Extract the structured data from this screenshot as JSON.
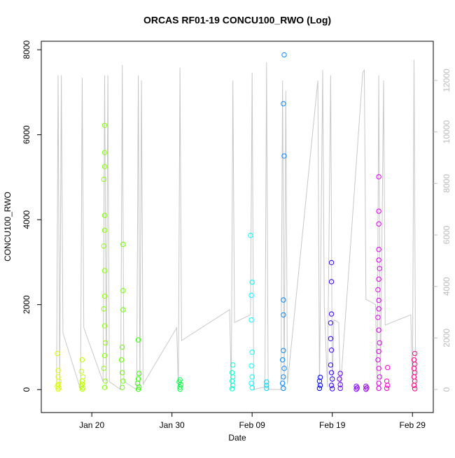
{
  "chart_data": {
    "type": "scatter",
    "title": "ORCAS RF01-19 CONCU100_RWO (Log)",
    "x_label": "Date",
    "y_label": "CONCU100_RWO",
    "xlim": [
      13.7,
      62.6
    ],
    "xticks": [
      {
        "value": 20,
        "label": "Jan 20"
      },
      {
        "value": 30,
        "label": "Jan 30"
      },
      {
        "value": 40,
        "label": "Feb 09"
      },
      {
        "value": 50,
        "label": "Feb 19"
      },
      {
        "value": 60,
        "label": "Feb 29"
      }
    ],
    "ylim": [
      -540,
      8200
    ],
    "yticks": [
      0,
      2000,
      4000,
      6000,
      8000
    ],
    "y2lim": [
      -896,
      13520
    ],
    "y2ticks": [
      0,
      2000,
      4000,
      6000,
      8000,
      10000,
      12000
    ],
    "y2color": "#bbbbbb",
    "line": {
      "axis": "y2",
      "color": "#c8c8c8",
      "x": [
        15.6,
        15.8,
        16.0,
        16.2,
        16.4,
        18.6,
        18.8,
        19.0,
        21.4,
        21.6,
        21.8,
        22.0,
        22.2,
        23.6,
        23.8,
        24.0,
        25.6,
        25.8,
        26.0,
        26.2,
        26.4,
        30.6,
        30.8,
        31.0,
        31.2,
        37.2,
        37.4,
        37.6,
        37.8,
        39.8,
        40.0,
        40.2,
        41.6,
        41.8,
        42.0,
        43.6,
        43.8,
        44.0,
        44.2,
        44.4,
        48.2,
        48.4,
        48.8,
        49.0,
        49.4,
        49.8,
        50.0,
        50.2,
        50.8,
        51.0,
        53.8,
        54.0,
        54.2,
        55.4,
        55.6,
        55.8,
        56.0,
        56.4,
        56.6,
        59.8,
        60.0,
        60.2,
        60.4
      ],
      "values": [
        0,
        12200,
        0,
        12200,
        2200,
        0,
        12100,
        2400,
        300,
        12200,
        0,
        12200,
        300,
        0,
        12600,
        300,
        0,
        12200,
        0,
        12000,
        200,
        2400,
        0,
        12500,
        1900,
        3100,
        0,
        12000,
        2600,
        2900,
        12300,
        0,
        100,
        12700,
        0,
        0,
        12000,
        0,
        11600,
        200,
        12000,
        0,
        12400,
        3200,
        100,
        12200,
        0,
        2700,
        2600,
        0,
        12300,
        12400,
        3500,
        3300,
        0,
        12200,
        0,
        12000,
        2500,
        2900,
        0,
        12800,
        0
      ]
    },
    "series": [
      {
        "color": "#ddff00",
        "x": [
          15.7,
          15.8,
          15.8,
          15.9,
          15.8,
          15.7,
          15.9,
          15.8
        ],
        "values": [
          850,
          450,
          300,
          200,
          120,
          80,
          40,
          10
        ]
      },
      {
        "color": "#bbff00",
        "x": [
          18.8,
          18.7,
          18.9,
          18.8,
          18.8,
          18.7,
          18.9,
          18.8
        ],
        "values": [
          700,
          430,
          300,
          200,
          130,
          80,
          40,
          10
        ]
      },
      {
        "color": "#88ff00",
        "x": [
          21.6,
          21.6,
          21.6,
          21.5,
          21.6,
          21.6,
          21.5,
          21.6,
          21.6,
          21.5,
          21.6,
          21.7,
          21.6,
          21.5,
          21.7,
          21.6
        ],
        "values": [
          6220,
          5580,
          5250,
          4950,
          4100,
          3750,
          3380,
          2800,
          2200,
          1900,
          1500,
          1100,
          800,
          500,
          200,
          50
        ]
      },
      {
        "color": "#66ff00",
        "x": [
          23.9,
          23.9,
          23.9,
          23.8,
          23.7,
          23.8,
          23.9,
          23.8
        ],
        "values": [
          3420,
          2330,
          1880,
          1000,
          700,
          400,
          200,
          50
        ]
      },
      {
        "color": "#33ff00",
        "x": [
          25.8,
          25.9,
          25.8,
          25.7,
          25.9,
          25.8
        ],
        "values": [
          1170,
          380,
          250,
          150,
          60,
          10
        ]
      },
      {
        "color": "#00ff44",
        "x": [
          31.0,
          30.9,
          31.1,
          31.0,
          31.0
        ],
        "values": [
          230,
          180,
          120,
          60,
          10
        ]
      },
      {
        "color": "#00ffcc",
        "x": [
          37.6,
          37.5,
          37.6,
          37.5,
          37.6,
          37.5
        ],
        "values": [
          580,
          400,
          300,
          200,
          100,
          20
        ]
      },
      {
        "color": "#00ffff",
        "x": [
          39.8,
          40.0,
          39.9,
          39.9,
          40.0,
          39.9,
          40.0,
          39.9,
          40.0
        ],
        "values": [
          3630,
          2530,
          2220,
          1640,
          880,
          560,
          300,
          150,
          40
        ]
      },
      {
        "color": "#00ddff",
        "x": [
          41.8,
          41.8,
          41.8
        ],
        "values": [
          180,
          100,
          30
        ]
      },
      {
        "color": "#0088ff",
        "x": [
          44.0,
          43.9,
          44.0,
          43.9,
          43.9,
          43.9,
          43.8,
          44.0,
          43.9,
          43.8,
          43.9
        ],
        "values": [
          7880,
          6730,
          5500,
          2110,
          1760,
          920,
          700,
          500,
          300,
          150,
          30
        ]
      },
      {
        "color": "#0000ff",
        "x": [
          48.5,
          48.4,
          48.5,
          48.4
        ],
        "values": [
          290,
          200,
          100,
          30
        ]
      },
      {
        "color": "#3300ff",
        "x": [
          49.9,
          49.9,
          49.9,
          49.8,
          49.8,
          49.9,
          49.8,
          49.9,
          50.0,
          49.9,
          50.0
        ],
        "values": [
          2990,
          2540,
          1780,
          1570,
          1200,
          930,
          580,
          400,
          250,
          100,
          20
        ]
      },
      {
        "color": "#6600ff",
        "x": [
          51.0,
          50.9,
          51.0,
          51.0
        ],
        "values": [
          380,
          250,
          120,
          30
        ]
      },
      {
        "color": "#8800ff",
        "x": [
          53.0,
          53.1,
          53.0
        ],
        "values": [
          80,
          40,
          10
        ]
      },
      {
        "color": "#9900ee",
        "x": [
          54.2,
          54.3,
          54.2
        ],
        "values": [
          80,
          40,
          10
        ]
      },
      {
        "color": "#dd00ee",
        "x": [
          55.8,
          55.8,
          55.8,
          55.8,
          55.8,
          55.9,
          55.8,
          55.7,
          55.8,
          55.8,
          55.7,
          55.8,
          55.9,
          55.8,
          55.7,
          55.8,
          55.9,
          55.8,
          55.8
        ],
        "values": [
          5010,
          4200,
          3900,
          3300,
          3050,
          2850,
          2600,
          2350,
          2100,
          1900,
          1700,
          1400,
          1100,
          900,
          700,
          500,
          300,
          150,
          30
        ]
      },
      {
        "color": "#ff00cc",
        "x": [
          56.9,
          56.8,
          56.9,
          56.8
        ],
        "values": [
          520,
          200,
          100,
          30
        ]
      },
      {
        "color": "#ff0088",
        "x": [
          60.3,
          60.2,
          60.3,
          60.2,
          60.3,
          60.2,
          60.3,
          60.2,
          60.3
        ],
        "values": [
          850,
          700,
          600,
          500,
          400,
          300,
          200,
          100,
          20
        ]
      }
    ]
  }
}
